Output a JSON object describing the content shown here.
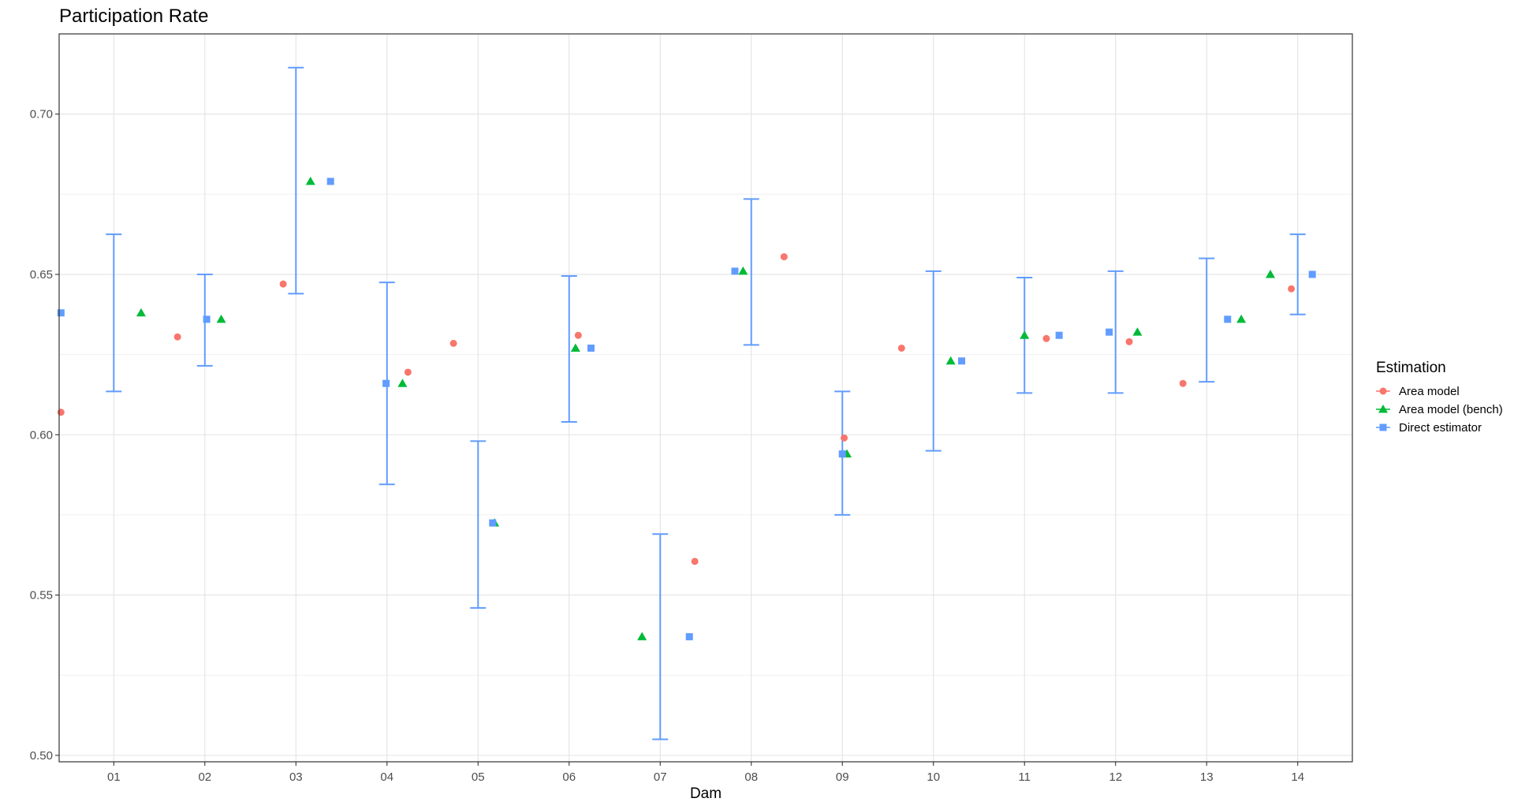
{
  "chart_data": {
    "type": "scatter",
    "title": "Participation Rate",
    "xlabel": "Dam",
    "ylabel": "",
    "categories": [
      "01",
      "02",
      "03",
      "04",
      "05",
      "06",
      "07",
      "08",
      "09",
      "10",
      "11",
      "12",
      "13",
      "14"
    ],
    "ylim": [
      0.498,
      0.725
    ],
    "yticks": [
      0.5,
      0.55,
      0.6,
      0.65,
      0.7
    ],
    "ytick_labels": [
      "0.50",
      "0.55",
      "0.60",
      "0.65",
      "0.70"
    ],
    "grid": true,
    "legend": {
      "title": "Estimation",
      "position": "right"
    },
    "series": [
      {
        "name": "Area model",
        "color": "#F8766D",
        "marker": "circle",
        "points": [
          {
            "x": 0.42,
            "y": 0.607
          },
          {
            "x": 1.7,
            "y": 0.6305
          },
          {
            "x": 2.86,
            "y": 0.647
          },
          {
            "x": 4.23,
            "y": 0.6195
          },
          {
            "x": 4.73,
            "y": 0.6285
          },
          {
            "x": 6.1,
            "y": 0.631
          },
          {
            "x": 7.38,
            "y": 0.5605
          },
          {
            "x": 8.36,
            "y": 0.6555
          },
          {
            "x": 9.02,
            "y": 0.599
          },
          {
            "x": 9.65,
            "y": 0.627
          },
          {
            "x": 11.24,
            "y": 0.63
          },
          {
            "x": 12.15,
            "y": 0.629
          },
          {
            "x": 12.74,
            "y": 0.616
          },
          {
            "x": 13.93,
            "y": 0.6455
          }
        ]
      },
      {
        "name": "Area model (bench)",
        "color": "#00BA38",
        "marker": "triangle",
        "points": [
          {
            "x": 1.3,
            "y": 0.638
          },
          {
            "x": 2.18,
            "y": 0.636
          },
          {
            "x": 3.16,
            "y": 0.679
          },
          {
            "x": 4.17,
            "y": 0.616
          },
          {
            "x": 5.18,
            "y": 0.5725
          },
          {
            "x": 6.07,
            "y": 0.627
          },
          {
            "x": 6.8,
            "y": 0.537
          },
          {
            "x": 7.91,
            "y": 0.651
          },
          {
            "x": 9.05,
            "y": 0.594
          },
          {
            "x": 10.19,
            "y": 0.623
          },
          {
            "x": 11.0,
            "y": 0.631
          },
          {
            "x": 12.24,
            "y": 0.632
          },
          {
            "x": 13.38,
            "y": 0.636
          },
          {
            "x": 13.7,
            "y": 0.65
          }
        ]
      },
      {
        "name": "Direct estimator",
        "color": "#619CFF",
        "marker": "square",
        "points": [
          {
            "x": 0.42,
            "y": 0.638
          },
          {
            "x": 2.02,
            "y": 0.636
          },
          {
            "x": 3.38,
            "y": 0.679
          },
          {
            "x": 3.99,
            "y": 0.616
          },
          {
            "x": 5.16,
            "y": 0.5725
          },
          {
            "x": 6.24,
            "y": 0.627
          },
          {
            "x": 7.32,
            "y": 0.537
          },
          {
            "x": 7.82,
            "y": 0.651
          },
          {
            "x": 9.0,
            "y": 0.594
          },
          {
            "x": 10.31,
            "y": 0.623
          },
          {
            "x": 11.38,
            "y": 0.631
          },
          {
            "x": 11.93,
            "y": 0.632
          },
          {
            "x": 13.23,
            "y": 0.636
          },
          {
            "x": 14.16,
            "y": 0.65
          }
        ]
      }
    ],
    "error_bars": {
      "color": "#619CFF",
      "bars": [
        {
          "x": 1.0,
          "low": 0.6135,
          "high": 0.6625
        },
        {
          "x": 2.0,
          "low": 0.6215,
          "high": 0.65
        },
        {
          "x": 3.0,
          "low": 0.644,
          "high": 0.7145
        },
        {
          "x": 4.0,
          "low": 0.5845,
          "high": 0.6475
        },
        {
          "x": 5.0,
          "low": 0.546,
          "high": 0.598
        },
        {
          "x": 6.0,
          "low": 0.604,
          "high": 0.6495
        },
        {
          "x": 7.0,
          "low": 0.505,
          "high": 0.569
        },
        {
          "x": 8.0,
          "low": 0.628,
          "high": 0.6735
        },
        {
          "x": 9.0,
          "low": 0.575,
          "high": 0.6135
        },
        {
          "x": 10.0,
          "low": 0.595,
          "high": 0.651
        },
        {
          "x": 11.0,
          "low": 0.613,
          "high": 0.649
        },
        {
          "x": 12.0,
          "low": 0.613,
          "high": 0.651
        },
        {
          "x": 13.0,
          "low": 0.6165,
          "high": 0.655
        },
        {
          "x": 14.0,
          "low": 0.6375,
          "high": 0.6625
        }
      ]
    }
  }
}
